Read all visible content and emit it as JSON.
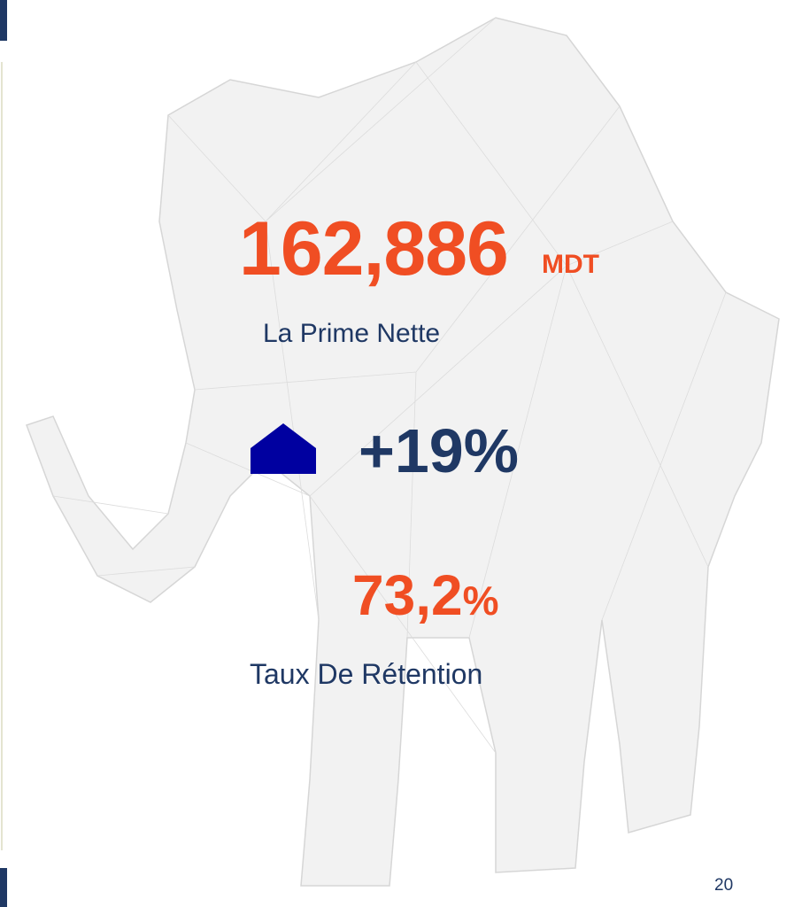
{
  "headline": {
    "value": "162,886",
    "unit": "MDT",
    "label": "La Prime Nette"
  },
  "growth": {
    "value": "+19%"
  },
  "retention": {
    "value": "73,2",
    "unit": "%",
    "label": "Taux De Rétention"
  },
  "page_number": "20"
}
